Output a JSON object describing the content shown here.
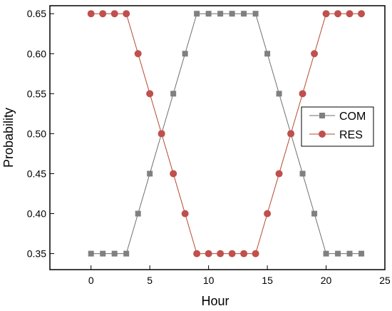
{
  "chart_data": {
    "type": "line",
    "title": "",
    "xlabel": "Hour",
    "ylabel": "Probability",
    "xlim": [
      -3.5,
      25
    ],
    "ylim": [
      0.33,
      0.66
    ],
    "xticks": [
      0,
      5,
      10,
      15,
      20,
      25
    ],
    "yticks": [
      0.35,
      0.4,
      0.45,
      0.5,
      0.55,
      0.6,
      0.65
    ],
    "ytick_labels": [
      "0.35",
      "0.40",
      "0.45",
      "0.50",
      "0.55",
      "0.60",
      "0.65"
    ],
    "grid": false,
    "legend_position": "right",
    "x": [
      0,
      1,
      2,
      3,
      4,
      5,
      6,
      7,
      8,
      9,
      10,
      11,
      12,
      13,
      14,
      15,
      16,
      17,
      18,
      19,
      20,
      21,
      22,
      23
    ],
    "series": [
      {
        "name": "COM",
        "marker": "square",
        "color": "#808080",
        "line_color": "#6f6f6f",
        "values": [
          0.35,
          0.35,
          0.35,
          0.35,
          0.4,
          0.45,
          0.5,
          0.55,
          0.6,
          0.65,
          0.65,
          0.65,
          0.65,
          0.65,
          0.65,
          0.6,
          0.55,
          0.5,
          0.45,
          0.4,
          0.35,
          0.35,
          0.35,
          0.35
        ]
      },
      {
        "name": "RES",
        "marker": "circle",
        "color": "#c0504d",
        "line_color": "#b5492f",
        "values": [
          0.65,
          0.65,
          0.65,
          0.65,
          0.6,
          0.55,
          0.5,
          0.45,
          0.4,
          0.35,
          0.35,
          0.35,
          0.35,
          0.35,
          0.35,
          0.4,
          0.45,
          0.5,
          0.55,
          0.6,
          0.65,
          0.65,
          0.65,
          0.65
        ]
      }
    ]
  }
}
